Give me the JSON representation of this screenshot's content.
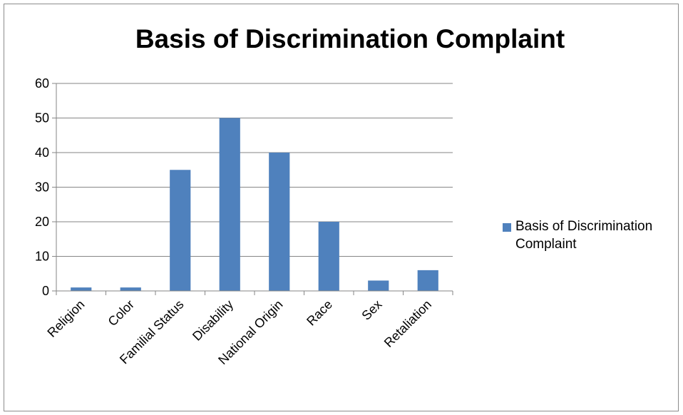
{
  "chart_data": {
    "type": "bar",
    "title": "Basis of Discrimination Complaint",
    "xlabel": "",
    "ylabel": "",
    "categories": [
      "Religion",
      "Color",
      "Familial Status",
      "Disability",
      "National Origin",
      "Race",
      "Sex",
      "Retaliation"
    ],
    "series": [
      {
        "name": "Basis of Discrimination Complaint",
        "values": [
          1,
          1,
          35,
          50,
          40,
          20,
          3,
          6
        ],
        "color": "#4F81BD"
      }
    ],
    "ylim": [
      0,
      60
    ],
    "yticks": [
      0,
      10,
      20,
      30,
      40,
      50,
      60
    ],
    "grid": true,
    "legend_position": "right"
  }
}
